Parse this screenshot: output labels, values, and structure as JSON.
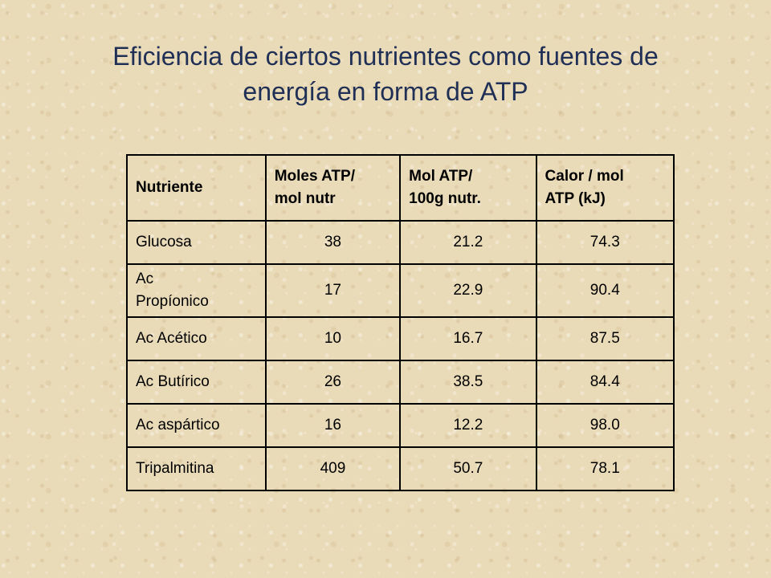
{
  "title": {
    "line1": "Eficiencia de ciertos nutrientes como fuentes de",
    "line2": "energía en forma de ATP"
  },
  "table": {
    "headers": [
      [
        "Nutriente"
      ],
      [
        "Moles ATP/",
        "mol nutr"
      ],
      [
        "Mol ATP/",
        "100g nutr."
      ],
      [
        "Calor / mol",
        "ATP (kJ)"
      ]
    ],
    "rows": [
      {
        "name": [
          "Glucosa"
        ],
        "moles_atp_mol": "38",
        "mol_atp_100g": "21.2",
        "calor_mol_atp": "74.3"
      },
      {
        "name": [
          "Ac",
          "Propíonico"
        ],
        "moles_atp_mol": "17",
        "mol_atp_100g": "22.9",
        "calor_mol_atp": "90.4"
      },
      {
        "name": [
          "Ac Acético"
        ],
        "moles_atp_mol": "10",
        "mol_atp_100g": "16.7",
        "calor_mol_atp": "87.5"
      },
      {
        "name": [
          "Ac Butírico"
        ],
        "moles_atp_mol": "26",
        "mol_atp_100g": "38.5",
        "calor_mol_atp": "84.4"
      },
      {
        "name": [
          "Ac aspártico"
        ],
        "moles_atp_mol": "16",
        "mol_atp_100g": "12.2",
        "calor_mol_atp": "98.0"
      },
      {
        "name": [
          "Tripalmitina"
        ],
        "moles_atp_mol": "409",
        "mol_atp_100g": "50.7",
        "calor_mol_atp": "78.1"
      }
    ]
  }
}
